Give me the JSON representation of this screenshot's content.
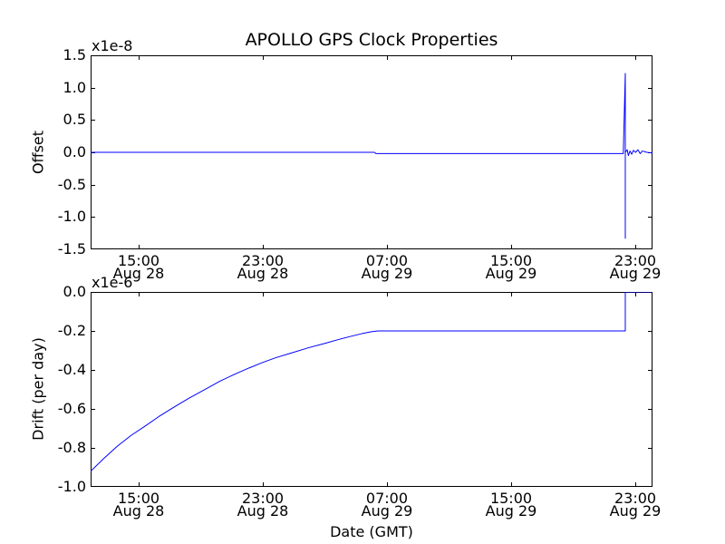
{
  "title": "APOLLO GPS Clock Properties",
  "xlabel": "Date (GMT)",
  "colors": {
    "line": "#0000ff",
    "frame": "#000000",
    "text": "#000000",
    "background": "#ffffff"
  },
  "x_ticks": {
    "positions": [
      0.0855,
      0.3065,
      0.5274,
      0.7484,
      0.9694
    ],
    "labels": [
      {
        "time": "15:00",
        "date": "Aug 28"
      },
      {
        "time": "23:00",
        "date": "Aug 28"
      },
      {
        "time": "07:00",
        "date": "Aug 29"
      },
      {
        "time": "15:00",
        "date": "Aug 29"
      },
      {
        "time": "23:00",
        "date": "Aug 29"
      }
    ]
  },
  "chart_data": [
    {
      "type": "line",
      "name": "offset",
      "ylabel": "Offset",
      "scale_label": "x1e-8",
      "ylim": [
        -1.5,
        1.5
      ],
      "yticks": [
        1.5,
        1.0,
        0.5,
        0.0,
        -0.5,
        -1.0,
        -1.5
      ],
      "ytick_labels": [
        "1.5",
        "1.0",
        "0.5",
        "0.0",
        "-0.5",
        "-1.0",
        "-1.5"
      ],
      "y_unit": "x1e-8",
      "x_unit": "fraction of x-axis span (Aug 28 ~11:54 GMT to Aug 30 ~00:06 GMT)",
      "points": [
        [
          0.0,
          0.0
        ],
        [
          0.2,
          0.0
        ],
        [
          0.4,
          0.0
        ],
        [
          0.505,
          0.0
        ],
        [
          0.508,
          -0.02
        ],
        [
          0.7,
          -0.02
        ],
        [
          0.9,
          -0.02
        ],
        [
          0.948,
          -0.02
        ],
        [
          0.9516,
          1.22
        ],
        [
          0.9516,
          -1.33
        ],
        [
          0.9516,
          0.0
        ],
        [
          0.955,
          0.04
        ],
        [
          0.957,
          -0.05
        ],
        [
          0.96,
          0.02
        ],
        [
          0.963,
          -0.03
        ],
        [
          0.966,
          0.03
        ],
        [
          0.97,
          0.0
        ],
        [
          0.974,
          0.04
        ],
        [
          0.978,
          -0.02
        ],
        [
          0.982,
          0.02
        ],
        [
          0.99,
          0.0
        ],
        [
          1.0,
          -0.01
        ]
      ]
    },
    {
      "type": "line",
      "name": "drift",
      "ylabel": "Drift (per day)",
      "scale_label": "x1e-6",
      "ylim": [
        -1.0,
        0.0
      ],
      "yticks": [
        0.0,
        -0.2,
        -0.4,
        -0.6,
        -0.8,
        -1.0
      ],
      "ytick_labels": [
        "0.0",
        "-0.2",
        "-0.4",
        "-0.6",
        "-0.8",
        "-1.0"
      ],
      "y_unit": "x1e-6",
      "x_unit": "fraction of x-axis span (Aug 28 ~11:54 GMT to Aug 30 ~00:06 GMT)",
      "points": [
        [
          0.0,
          -0.92
        ],
        [
          0.024,
          -0.853
        ],
        [
          0.048,
          -0.79
        ],
        [
          0.072,
          -0.736
        ],
        [
          0.097,
          -0.688
        ],
        [
          0.121,
          -0.64
        ],
        [
          0.145,
          -0.597
        ],
        [
          0.175,
          -0.545
        ],
        [
          0.205,
          -0.498
        ],
        [
          0.23,
          -0.458
        ],
        [
          0.258,
          -0.42
        ],
        [
          0.282,
          -0.39
        ],
        [
          0.306,
          -0.362
        ],
        [
          0.33,
          -0.337
        ],
        [
          0.355,
          -0.315
        ],
        [
          0.387,
          -0.287
        ],
        [
          0.419,
          -0.262
        ],
        [
          0.44,
          -0.245
        ],
        [
          0.46,
          -0.23
        ],
        [
          0.484,
          -0.213
        ],
        [
          0.5,
          -0.204
        ],
        [
          0.511,
          -0.2
        ],
        [
          0.7,
          -0.2
        ],
        [
          0.9,
          -0.2
        ],
        [
          0.9516,
          -0.2
        ],
        [
          0.9516,
          0.0
        ],
        [
          1.0,
          0.0
        ]
      ]
    }
  ]
}
